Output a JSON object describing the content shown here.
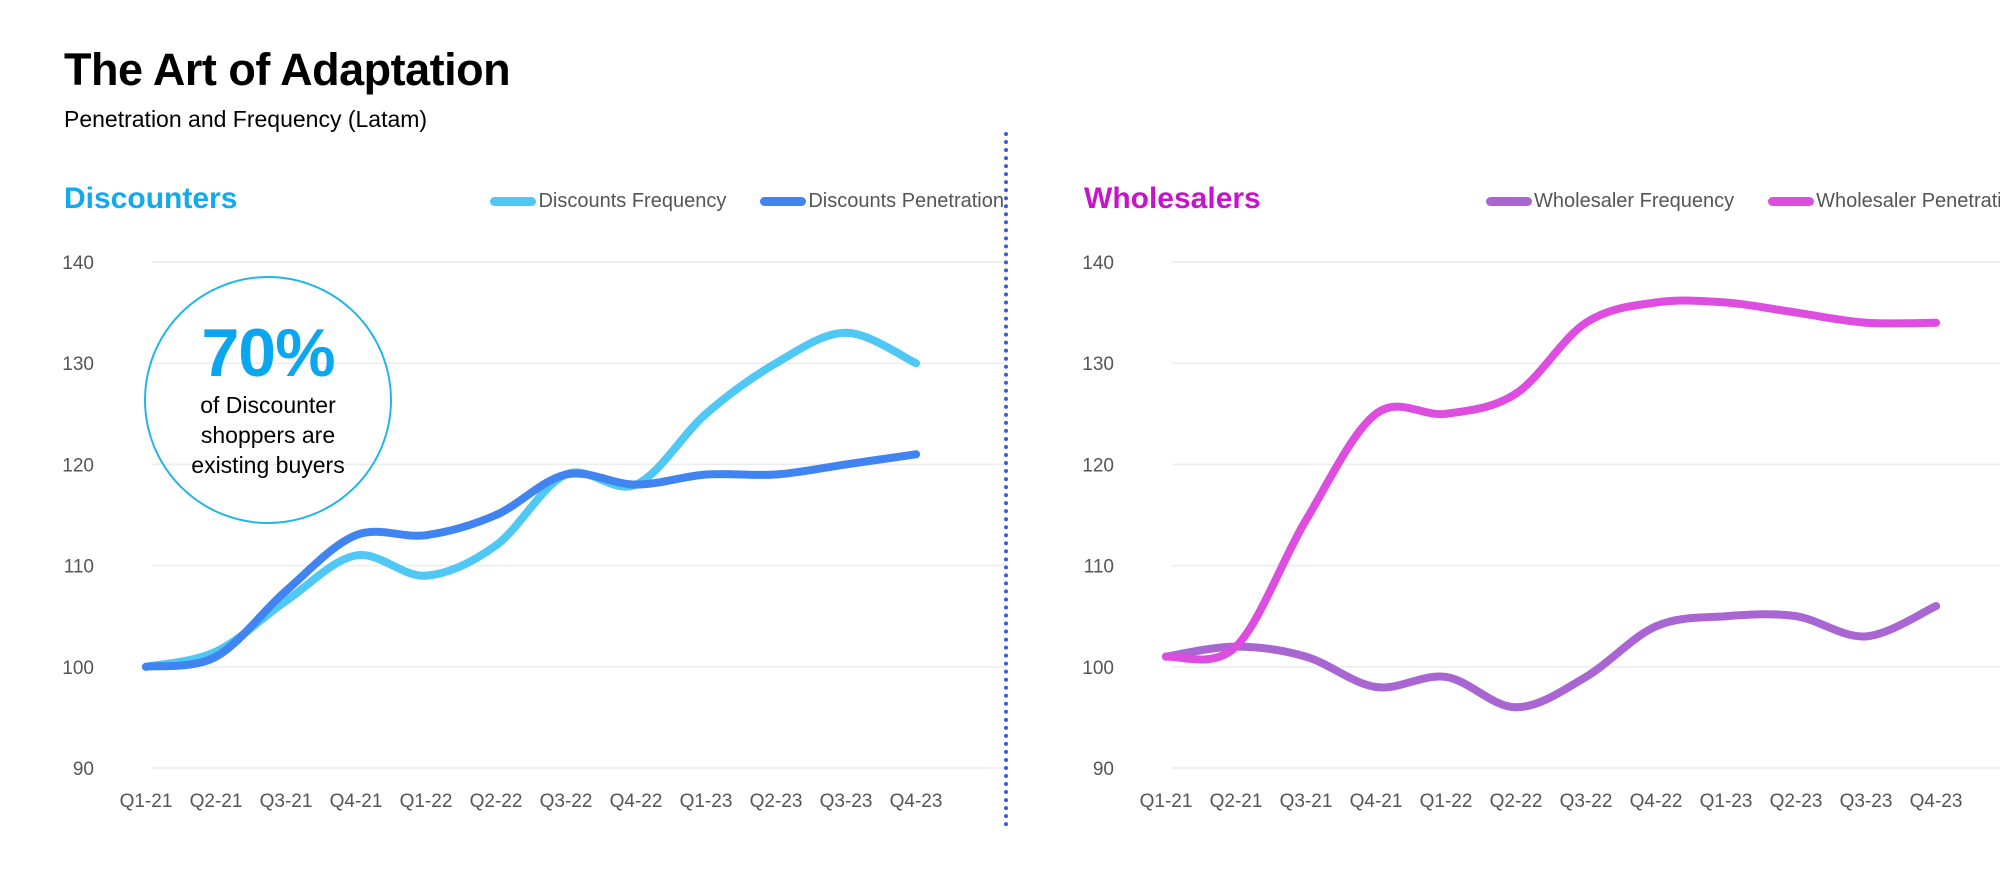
{
  "page": {
    "title": "The Art of Adaptation",
    "subtitle": "Penetration and Frequency (Latam)"
  },
  "colors": {
    "discounts_frequency": "#4fc8f5",
    "discounts_penetration": "#3f84f0",
    "wholesaler_frequency": "#a966d3",
    "wholesaler_penetration": "#dd4ee0",
    "discounters_title": "#12a9ee",
    "wholesalers_title": "#c714cc",
    "divider": "#3b5bdb"
  },
  "left": {
    "title": "Discounters",
    "legend": [
      "Discounts Frequency",
      "Discounts Penetration"
    ],
    "callout": {
      "value": "70%",
      "text": "of Discounter shoppers are existing buyers"
    }
  },
  "right": {
    "title": "Wholesalers",
    "legend": [
      "Wholesaler Frequency",
      "Wholesaler Penetration"
    ]
  },
  "chart_data": [
    {
      "type": "line",
      "title": "Discounters",
      "categories": [
        "Q1-21",
        "Q2-21",
        "Q3-21",
        "Q4-21",
        "Q1-22",
        "Q2-22",
        "Q3-22",
        "Q4-22",
        "Q1-23",
        "Q2-23",
        "Q3-23",
        "Q4-23"
      ],
      "series": [
        {
          "name": "Discounts Frequency",
          "values": [
            100,
            101.5,
            106.5,
            111,
            109,
            112,
            119,
            118,
            125,
            130,
            133,
            130
          ],
          "color": "#4fc8f5"
        },
        {
          "name": "Discounts Penetration",
          "values": [
            100,
            101,
            107.5,
            113,
            113,
            115,
            119,
            118,
            119,
            119,
            120,
            121
          ],
          "color": "#3f84f0"
        }
      ],
      "yticks": [
        90,
        100,
        110,
        120,
        130,
        140
      ],
      "ylim": [
        90,
        140
      ],
      "grid": true,
      "legend_position": "top-right"
    },
    {
      "type": "line",
      "title": "Wholesalers",
      "categories": [
        "Q1-21",
        "Q2-21",
        "Q3-21",
        "Q4-21",
        "Q1-22",
        "Q2-22",
        "Q3-22",
        "Q4-22",
        "Q1-23",
        "Q2-23",
        "Q3-23",
        "Q4-23"
      ],
      "series": [
        {
          "name": "Wholesaler Frequency",
          "values": [
            101,
            102,
            101,
            98,
            99,
            96,
            99,
            104,
            105,
            105,
            103,
            106
          ],
          "color": "#a966d3"
        },
        {
          "name": "Wholesaler Penetration",
          "values": [
            101,
            102,
            114.5,
            125,
            125,
            127,
            134,
            136,
            136,
            135,
            134,
            134
          ],
          "color": "#dd4ee0"
        }
      ],
      "yticks": [
        90,
        100,
        110,
        120,
        130,
        140
      ],
      "ylim": [
        90,
        140
      ],
      "grid": true,
      "legend_position": "top-right"
    }
  ]
}
